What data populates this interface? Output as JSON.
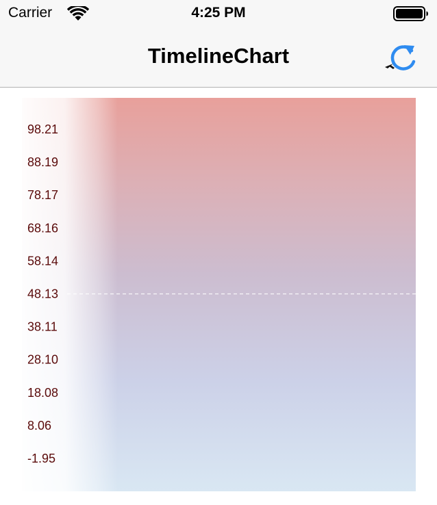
{
  "status_bar": {
    "carrier": "Carrier",
    "time": "4:25 PM",
    "wifi_icon": "wifi-icon",
    "battery_icon": "battery-icon"
  },
  "nav_bar": {
    "title": "TimelineChart",
    "refresh_icon": "refresh-icon",
    "tint_color": "#2f8cf0"
  },
  "chart_data": {
    "type": "line",
    "title": "",
    "xlabel": "",
    "ylabel": "",
    "y_tick_labels": [
      "98.21",
      "88.19",
      "78.17",
      "68.16",
      "58.14",
      "48.13",
      "38.11",
      "28.10",
      "18.08",
      "8.06",
      "-1.95"
    ],
    "y_ticks": [
      98.21,
      88.19,
      78.17,
      68.16,
      58.14,
      48.13,
      38.11,
      28.1,
      18.08,
      8.06,
      -1.95
    ],
    "ylim": [
      -1.95,
      98.21
    ],
    "reference_line": 48.13,
    "series": [],
    "grid": false,
    "background_gradient": [
      "#e8a09b",
      "#ccbdd0",
      "#d9e7f3"
    ]
  }
}
